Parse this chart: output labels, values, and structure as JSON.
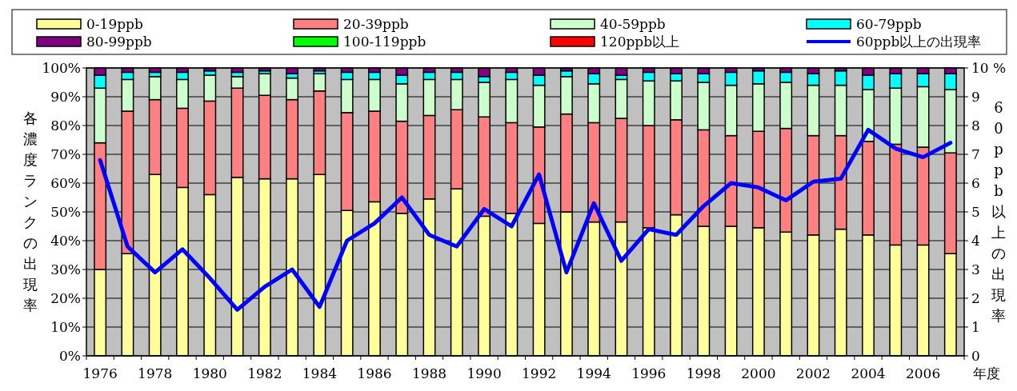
{
  "chart_data": {
    "type": "bar",
    "stacked": true,
    "grid": "y",
    "legend": "top",
    "categories": [
      "1976",
      null,
      "1978",
      null,
      "1980",
      null,
      "1982",
      null,
      "1984",
      null,
      "1986",
      null,
      "1988",
      null,
      "1990",
      null,
      "1992",
      null,
      "1994",
      null,
      "1996",
      null,
      "1998",
      null,
      "2000",
      null,
      "2002",
      null,
      "2004",
      null,
      "2006",
      null
    ],
    "xlabel": "年度",
    "ylabel": "各濃度ランクの出現率",
    "y2label": "60ppb以上の出現率",
    "ylim": [
      0,
      100
    ],
    "yticks": [
      {
        "value": 0,
        "label": "0%"
      },
      {
        "value": 10,
        "label": "10%"
      },
      {
        "value": 20,
        "label": "20%"
      },
      {
        "value": 30,
        "label": "30%"
      },
      {
        "value": 40,
        "label": "40%"
      },
      {
        "value": 50,
        "label": "50%"
      },
      {
        "value": 60,
        "label": "60%"
      },
      {
        "value": 70,
        "label": "70%"
      },
      {
        "value": 80,
        "label": "80%"
      },
      {
        "value": 90,
        "label": "90%"
      },
      {
        "value": 100,
        "label": "100%"
      }
    ],
    "y2lim": [
      0,
      10
    ],
    "y2ticks": [
      0,
      1,
      2,
      3,
      4,
      5,
      6,
      7,
      8,
      9,
      {
        "value": 10,
        "label": "10 %"
      }
    ],
    "series": [
      {
        "name": "0-19ppb",
        "color": "#ffff99",
        "values": [
          30,
          35.5,
          63,
          58.5,
          56,
          62,
          61.5,
          61.5,
          63,
          50.5,
          53.5,
          49.5,
          54.5,
          58,
          48.5,
          49.5,
          46,
          50,
          46.5,
          46.5,
          44.5,
          49,
          45,
          45,
          44.5,
          43,
          42,
          44,
          42,
          38.5,
          38.5,
          35.5
        ]
      },
      {
        "name": "20-39ppb",
        "color": "#ff8080",
        "values": [
          44,
          49.5,
          26,
          27.5,
          32.5,
          31,
          29,
          27.5,
          29,
          34,
          31.5,
          32,
          29,
          27.5,
          34.5,
          31.5,
          33.5,
          34,
          34.5,
          36,
          35.5,
          33,
          33.5,
          31.5,
          33.5,
          36,
          34.5,
          32.5,
          32.5,
          35,
          34,
          35
        ]
      },
      {
        "name": "40-59ppb",
        "color": "#ccffcc",
        "values": [
          19,
          11,
          8,
          10,
          9,
          4,
          7.5,
          7.5,
          6,
          11.5,
          11,
          13,
          12.5,
          10.5,
          12,
          15,
          14.5,
          13,
          13.5,
          13.5,
          15.5,
          13.5,
          16.5,
          17.5,
          16.5,
          16,
          17.5,
          17.5,
          18,
          19.5,
          21,
          22
        ]
      },
      {
        "name": "60-79ppb",
        "color": "#00ffff",
        "values": [
          4.5,
          2.5,
          1.5,
          2.5,
          1.5,
          1.5,
          1,
          1.5,
          1,
          2.5,
          2.5,
          3,
          2.5,
          2.5,
          2,
          2.5,
          3.5,
          2,
          3.5,
          1.5,
          3,
          2.5,
          3,
          4.5,
          4.5,
          3.5,
          4,
          5,
          5,
          5,
          4.5,
          5.5
        ]
      },
      {
        "name": "80-99ppb",
        "color": "#800080",
        "values": [
          2.5,
          1.5,
          1.5,
          1.5,
          1,
          1.5,
          1,
          2,
          1,
          1.5,
          1.5,
          2.5,
          1.5,
          1.5,
          3,
          1.5,
          2.5,
          1,
          2,
          2.5,
          1.5,
          2,
          2,
          1.5,
          1,
          1.5,
          2,
          1,
          2.5,
          2,
          2,
          2
        ]
      },
      {
        "name": "100-119ppb",
        "color": "#00ff00",
        "values": [
          0,
          0,
          0,
          0,
          0,
          0,
          0,
          0,
          0,
          0,
          0,
          0,
          0,
          0,
          0,
          0,
          0,
          0,
          0,
          0,
          0,
          0,
          0,
          0,
          0,
          0,
          0,
          0,
          0,
          0,
          0,
          0
        ]
      },
      {
        "name": "120ppb以上",
        "color": "#ff0000",
        "values": [
          0,
          0,
          0,
          0,
          0,
          0,
          0,
          0,
          0,
          0,
          0,
          0,
          0,
          0,
          0,
          0,
          0,
          0,
          0,
          0,
          0,
          0,
          0,
          0,
          0,
          0,
          0,
          0,
          0,
          0,
          0,
          0
        ]
      },
      {
        "name": "60ppb以上の出現率",
        "type": "line",
        "axis": "y2",
        "color": "#0000ff",
        "values": [
          6.8,
          3.8,
          2.9,
          3.7,
          2.7,
          1.6,
          2.4,
          3.0,
          1.7,
          4.0,
          4.6,
          5.5,
          4.2,
          3.8,
          5.1,
          4.5,
          6.3,
          2.9,
          5.3,
          3.3,
          4.4,
          4.2,
          5.2,
          6.0,
          5.85,
          5.4,
          6.05,
          6.15,
          7.85,
          7.2,
          6.9,
          7.4
        ]
      }
    ]
  }
}
